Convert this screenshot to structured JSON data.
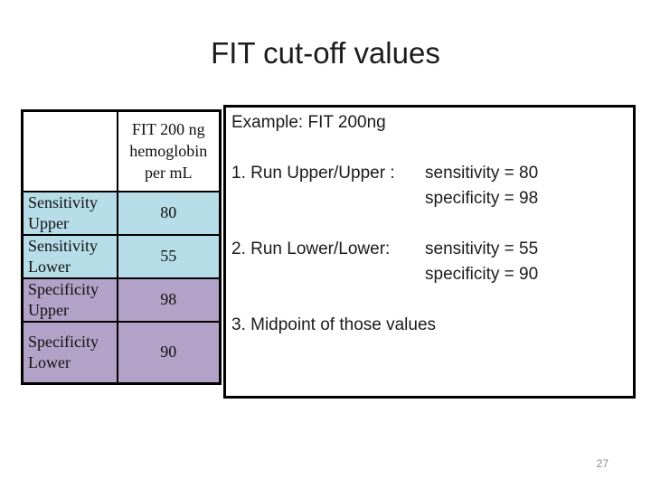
{
  "slide": {
    "title": "FIT cut-off values",
    "page_number": "27",
    "background_color": "#ffffff",
    "title_color": "#1b1b1b",
    "page_number_color": "#8a8a8a"
  },
  "table": {
    "corner": "",
    "column_header": "FIT 200 ng hemoglobin per mL",
    "rows": [
      {
        "label": "Sensitivity Upper",
        "value": "80",
        "group": "sensitivity"
      },
      {
        "label": "Sensitivity Lower",
        "value": "55",
        "group": "sensitivity"
      },
      {
        "label": "Specificity Upper",
        "value": "98",
        "group": "specificity"
      },
      {
        "label": "Specificity Lower",
        "value": "90",
        "group": "specificity"
      }
    ],
    "colors": {
      "sensitivity_bg": "#B6DDE8",
      "specificity_bg": "#B3A2C7",
      "border": "#000000",
      "header_bg": "#ffffff"
    }
  },
  "example_box": {
    "heading": "Example: FIT 200ng",
    "items": [
      {
        "prefix": "1. Run Upper/Upper :",
        "lines": [
          "sensitivity = 80",
          "specificity = 98"
        ]
      },
      {
        "prefix": "2. Run Lower/Lower:",
        "lines": [
          "sensitivity = 55",
          "specificity = 90"
        ]
      },
      {
        "prefix": "3. Midpoint of those values",
        "lines": []
      }
    ],
    "border_color": "#000000"
  }
}
